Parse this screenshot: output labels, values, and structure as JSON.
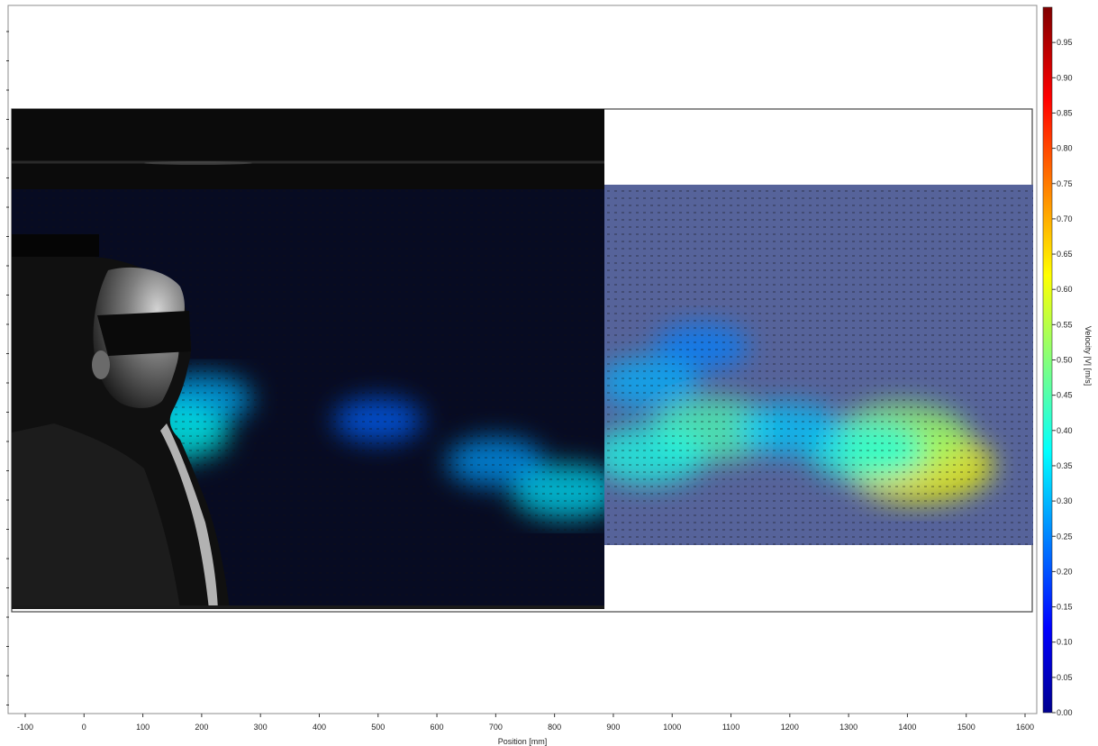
{
  "chart_data": {
    "type": "heatmap",
    "title": "",
    "xlabel": "Position [mm]",
    "ylabel": "",
    "x_ticks": [
      -100,
      0,
      100,
      200,
      300,
      400,
      500,
      600,
      700,
      800,
      900,
      1000,
      1100,
      1200,
      1300,
      1400,
      1500,
      1600
    ],
    "xlim": [
      -125,
      1620
    ],
    "y_tick_labels_visible": false,
    "colorbar": {
      "label": "Velocity |V| [m/s]",
      "range": [
        0,
        1.0
      ],
      "ticks": [
        "0.00",
        "0.05",
        "0.10",
        "0.15",
        "0.20",
        "0.25",
        "0.30",
        "0.35",
        "0.40",
        "0.45",
        "0.50",
        "0.55",
        "0.60",
        "0.65",
        "0.70",
        "0.75",
        "0.80",
        "0.85",
        "0.90",
        "0.95"
      ],
      "colormap": "jet"
    },
    "fields": [
      {
        "name": "left field",
        "x_range": [
          -125,
          880
        ],
        "overlay": "camera image with person in profile",
        "velocity_blobs": [
          {
            "x": 820,
            "y": 0.28,
            "value": 0.35
          },
          {
            "x": 700,
            "y": 0.35,
            "value": 0.28
          },
          {
            "x": 500,
            "y": 0.45,
            "value": 0.22
          },
          {
            "x": 200,
            "y": 0.5,
            "value": 0.3
          },
          {
            "x": 150,
            "y": 0.42,
            "value": 0.38
          }
        ]
      },
      {
        "name": "right field",
        "x_range": [
          880,
          1610
        ],
        "velocity_blobs": [
          {
            "x": 1420,
            "y": 0.22,
            "value": 0.62
          },
          {
            "x": 1390,
            "y": 0.3,
            "value": 0.52
          },
          {
            "x": 1070,
            "y": 0.32,
            "value": 0.45
          },
          {
            "x": 1330,
            "y": 0.26,
            "value": 0.4
          },
          {
            "x": 960,
            "y": 0.25,
            "value": 0.4
          },
          {
            "x": 1200,
            "y": 0.32,
            "value": 0.32
          },
          {
            "x": 1050,
            "y": 0.55,
            "value": 0.25
          },
          {
            "x": 960,
            "y": 0.45,
            "value": 0.3
          }
        ]
      }
    ],
    "colors": {
      "background_field": "#0a1030",
      "right_field_base": "#5c6a9c",
      "frame": "#444444"
    }
  }
}
